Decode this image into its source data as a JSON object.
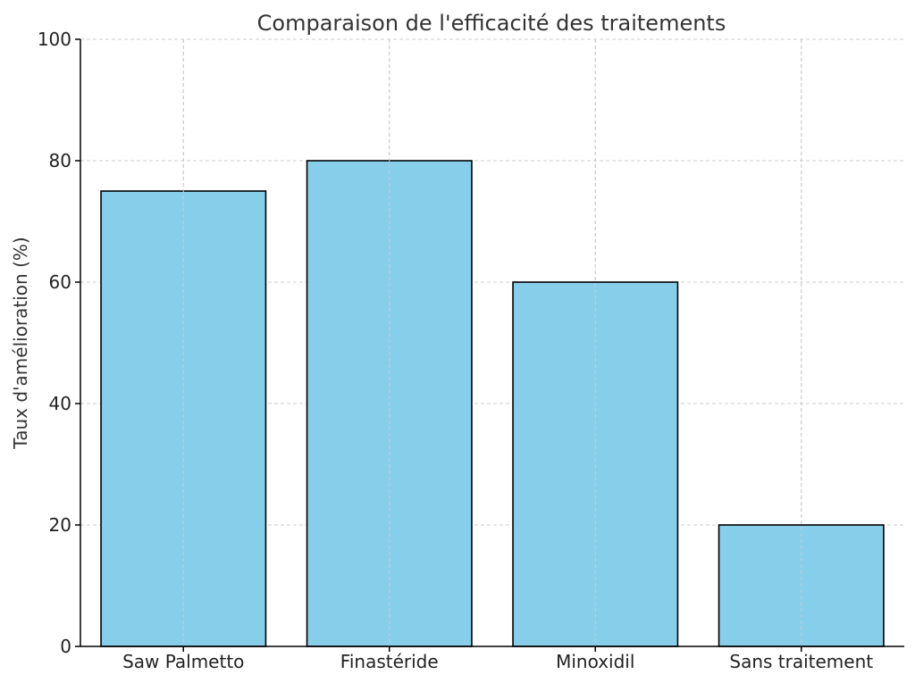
{
  "chart_data": {
    "type": "bar",
    "title": "Comparaison de l'efficacité des traitements",
    "xlabel": "",
    "ylabel": "Taux d'amélioration (%)",
    "categories": [
      "Saw Palmetto",
      "Finastéride",
      "Minoxidil",
      "Sans traitement"
    ],
    "values": [
      75,
      80,
      60,
      20
    ],
    "ylim": [
      0,
      100
    ],
    "yticks": [
      0,
      20,
      40,
      60,
      80,
      100
    ],
    "grid": true,
    "colors": {
      "bar_fill": "#87CEEB",
      "bar_edge": "#000000"
    }
  }
}
